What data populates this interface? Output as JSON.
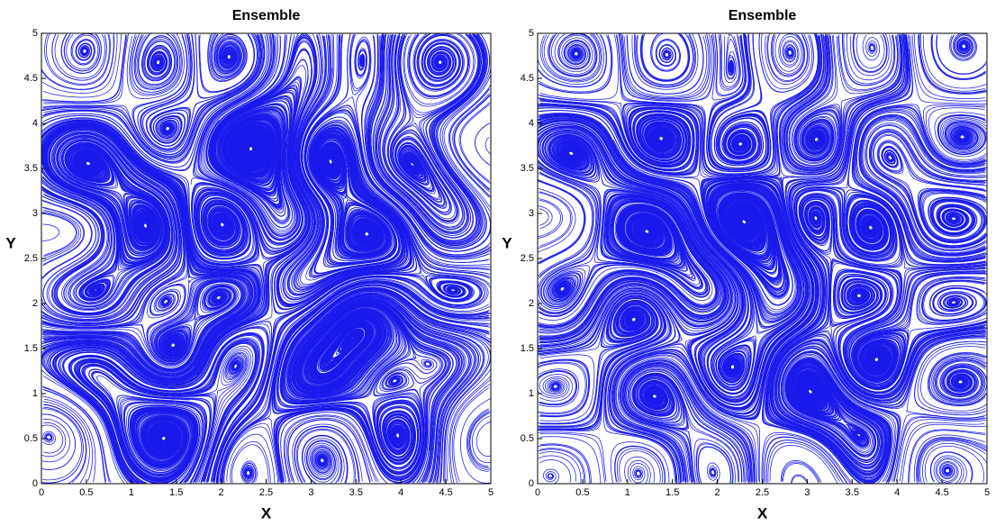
{
  "chart_data": [
    {
      "type": "streamline",
      "title": "Ensemble",
      "xlabel": "X",
      "ylabel": "Y",
      "xlim": [
        0,
        5
      ],
      "ylim": [
        0,
        5
      ],
      "xticks": [
        0,
        0.5,
        1,
        1.5,
        2,
        2.5,
        3,
        3.5,
        4,
        4.5,
        5
      ],
      "yticks": [
        0,
        0.5,
        1,
        1.5,
        2,
        2.5,
        3,
        3.5,
        4,
        4.5,
        5
      ],
      "color": "#1a1aeb"
    },
    {
      "type": "streamline",
      "title": "Ensemble",
      "xlabel": "X",
      "ylabel": "Y",
      "xlim": [
        0,
        5
      ],
      "ylim": [
        0,
        5
      ],
      "xticks": [
        0,
        0.5,
        1,
        1.5,
        2,
        2.5,
        3,
        3.5,
        4,
        4.5,
        5
      ],
      "yticks": [
        0,
        0.5,
        1,
        1.5,
        2,
        2.5,
        3,
        3.5,
        4,
        4.5,
        5
      ],
      "color": "#1a1aeb"
    }
  ]
}
